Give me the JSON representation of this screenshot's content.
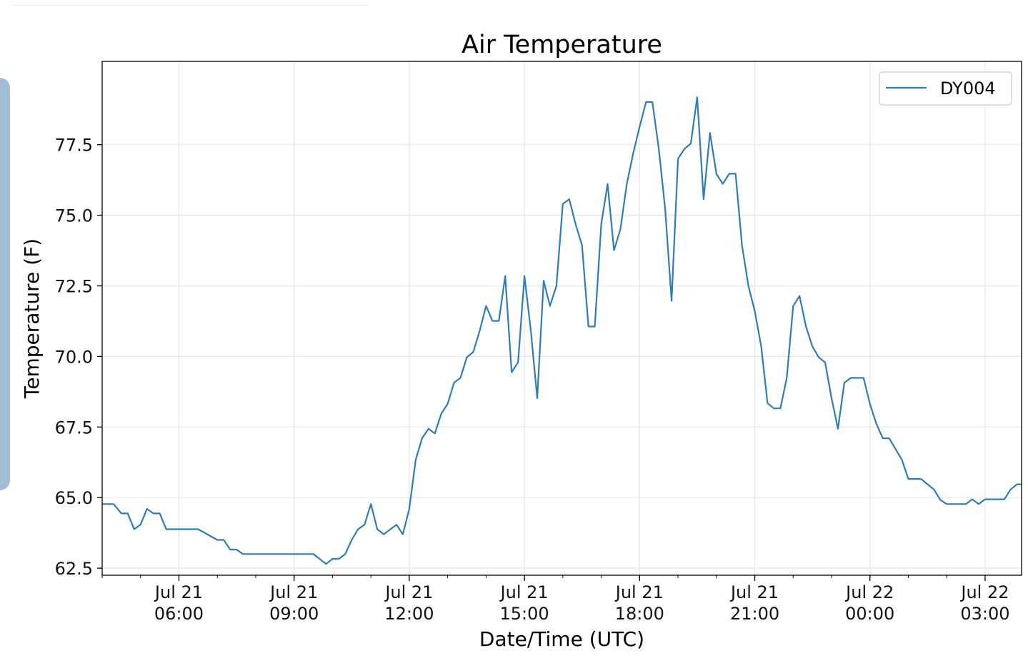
{
  "chart_data": {
    "type": "line",
    "title": "Air Temperature",
    "xlabel": "Date/Time (UTC)",
    "ylabel": "Temperature (F)",
    "ylim": [
      62.25,
      80.45
    ],
    "xlim": [
      "2023-07-21 04:00",
      "2023-07-22 03:57"
    ],
    "y_ticks": [
      "62.5",
      "65.0",
      "67.5",
      "70.0",
      "72.5",
      "75.0",
      "77.5"
    ],
    "x_ticks": [
      {
        "line1": "Jul 21",
        "line2": "06:00",
        "t": "2023-07-21 06:00"
      },
      {
        "line1": "Jul 21",
        "line2": "09:00",
        "t": "2023-07-21 09:00"
      },
      {
        "line1": "Jul 21",
        "line2": "12:00",
        "t": "2023-07-21 12:00"
      },
      {
        "line1": "Jul 21",
        "line2": "15:00",
        "t": "2023-07-21 15:00"
      },
      {
        "line1": "Jul 21",
        "line2": "18:00",
        "t": "2023-07-21 18:00"
      },
      {
        "line1": "Jul 21",
        "line2": "21:00",
        "t": "2023-07-21 21:00"
      },
      {
        "line1": "Jul 22",
        "line2": "00:00",
        "t": "2023-07-22 00:00"
      },
      {
        "line1": "Jul 22",
        "line2": "03:00",
        "t": "2023-07-22 03:00"
      }
    ],
    "grid": true,
    "legend_position": "top-right",
    "series": [
      {
        "name": "DY004",
        "color": "#2f7db4",
        "points": [
          [
            "2023-07-21 04:00",
            64.77
          ],
          [
            "2023-07-21 04:18",
            64.77
          ],
          [
            "2023-07-21 04:30",
            64.44
          ],
          [
            "2023-07-21 04:40",
            64.44
          ],
          [
            "2023-07-21 04:50",
            63.88
          ],
          [
            "2023-07-21 05:00",
            64.04
          ],
          [
            "2023-07-21 05:10",
            64.6
          ],
          [
            "2023-07-21 05:20",
            64.44
          ],
          [
            "2023-07-21 05:30",
            64.44
          ],
          [
            "2023-07-21 05:40",
            63.88
          ],
          [
            "2023-07-21 06:30",
            63.88
          ],
          [
            "2023-07-21 07:00",
            63.5
          ],
          [
            "2023-07-21 07:10",
            63.5
          ],
          [
            "2023-07-21 07:20",
            63.16
          ],
          [
            "2023-07-21 07:30",
            63.16
          ],
          [
            "2023-07-21 07:40",
            63.0
          ],
          [
            "2023-07-21 09:30",
            63.0
          ],
          [
            "2023-07-21 09:50",
            62.65
          ],
          [
            "2023-07-21 10:00",
            62.83
          ],
          [
            "2023-07-21 10:10",
            62.83
          ],
          [
            "2023-07-21 10:20",
            63.0
          ],
          [
            "2023-07-21 10:30",
            63.5
          ],
          [
            "2023-07-21 10:40",
            63.88
          ],
          [
            "2023-07-21 10:50",
            64.04
          ],
          [
            "2023-07-21 11:00",
            64.77
          ],
          [
            "2023-07-21 11:10",
            63.88
          ],
          [
            "2023-07-21 11:20",
            63.7
          ],
          [
            "2023-07-21 11:40",
            64.04
          ],
          [
            "2023-07-21 11:50",
            63.7
          ],
          [
            "2023-07-21 12:00",
            64.6
          ],
          [
            "2023-07-21 12:10",
            66.34
          ],
          [
            "2023-07-21 12:20",
            67.1
          ],
          [
            "2023-07-21 12:30",
            67.44
          ],
          [
            "2023-07-21 12:40",
            67.27
          ],
          [
            "2023-07-21 12:50",
            67.97
          ],
          [
            "2023-07-21 13:00",
            68.32
          ],
          [
            "2023-07-21 13:10",
            69.07
          ],
          [
            "2023-07-21 13:20",
            69.24
          ],
          [
            "2023-07-21 13:30",
            69.97
          ],
          [
            "2023-07-21 13:40",
            70.16
          ],
          [
            "2023-07-21 13:50",
            70.9
          ],
          [
            "2023-07-21 14:00",
            71.79
          ],
          [
            "2023-07-21 14:10",
            71.26
          ],
          [
            "2023-07-21 14:20",
            71.26
          ],
          [
            "2023-07-21 14:30",
            72.85
          ],
          [
            "2023-07-21 14:40",
            69.44
          ],
          [
            "2023-07-21 14:50",
            69.79
          ],
          [
            "2023-07-21 15:00",
            72.85
          ],
          [
            "2023-07-21 15:10",
            70.9
          ],
          [
            "2023-07-21 15:20",
            68.52
          ],
          [
            "2023-07-21 15:30",
            72.68
          ],
          [
            "2023-07-21 15:40",
            71.79
          ],
          [
            "2023-07-21 15:50",
            72.5
          ],
          [
            "2023-07-21 16:00",
            75.4
          ],
          [
            "2023-07-21 16:10",
            75.57
          ],
          [
            "2023-07-21 16:20",
            74.68
          ],
          [
            "2023-07-21 16:30",
            73.94
          ],
          [
            "2023-07-21 16:40",
            71.06
          ],
          [
            "2023-07-21 16:50",
            71.06
          ],
          [
            "2023-07-21 17:00",
            74.68
          ],
          [
            "2023-07-21 17:10",
            76.11
          ],
          [
            "2023-07-21 17:20",
            73.76
          ],
          [
            "2023-07-21 17:30",
            74.5
          ],
          [
            "2023-07-21 17:40",
            76.11
          ],
          [
            "2023-07-21 17:50",
            77.2
          ],
          [
            "2023-07-21 18:00",
            78.13
          ],
          [
            "2023-07-21 18:10",
            79.01
          ],
          [
            "2023-07-21 18:20",
            79.01
          ],
          [
            "2023-07-21 18:30",
            77.35
          ],
          [
            "2023-07-21 18:40",
            75.22
          ],
          [
            "2023-07-21 18:50",
            71.97
          ],
          [
            "2023-07-21 19:00",
            77.0
          ],
          [
            "2023-07-21 19:10",
            77.35
          ],
          [
            "2023-07-21 19:20",
            77.54
          ],
          [
            "2023-07-21 19:30",
            79.18
          ],
          [
            "2023-07-21 19:40",
            75.57
          ],
          [
            "2023-07-21 19:50",
            77.92
          ],
          [
            "2023-07-21 20:00",
            76.47
          ],
          [
            "2023-07-21 20:10",
            76.11
          ],
          [
            "2023-07-21 20:20",
            76.47
          ],
          [
            "2023-07-21 20:30",
            76.47
          ],
          [
            "2023-07-21 20:40",
            73.94
          ],
          [
            "2023-07-21 20:50",
            72.5
          ],
          [
            "2023-07-21 21:00",
            71.61
          ],
          [
            "2023-07-21 21:10",
            70.36
          ],
          [
            "2023-07-21 21:20",
            68.34
          ],
          [
            "2023-07-21 21:30",
            68.16
          ],
          [
            "2023-07-21 21:40",
            68.16
          ],
          [
            "2023-07-21 21:50",
            69.24
          ],
          [
            "2023-07-21 22:00",
            71.79
          ],
          [
            "2023-07-21 22:10",
            72.14
          ],
          [
            "2023-07-21 22:20",
            71.06
          ],
          [
            "2023-07-21 22:30",
            70.36
          ],
          [
            "2023-07-21 22:40",
            69.97
          ],
          [
            "2023-07-21 22:50",
            69.79
          ],
          [
            "2023-07-21 23:00",
            68.52
          ],
          [
            "2023-07-21 23:10",
            67.44
          ],
          [
            "2023-07-21 23:20",
            69.07
          ],
          [
            "2023-07-21 23:30",
            69.24
          ],
          [
            "2023-07-21 23:50",
            69.24
          ],
          [
            "2023-07-22 00:00",
            68.32
          ],
          [
            "2023-07-22 00:10",
            67.62
          ],
          [
            "2023-07-22 00:20",
            67.1
          ],
          [
            "2023-07-22 00:30",
            67.1
          ],
          [
            "2023-07-22 00:40",
            66.72
          ],
          [
            "2023-07-22 00:50",
            66.34
          ],
          [
            "2023-07-22 01:00",
            65.66
          ],
          [
            "2023-07-22 01:20",
            65.66
          ],
          [
            "2023-07-22 01:30",
            65.47
          ],
          [
            "2023-07-22 01:40",
            65.29
          ],
          [
            "2023-07-22 01:50",
            64.92
          ],
          [
            "2023-07-22 02:00",
            64.77
          ],
          [
            "2023-07-22 02:30",
            64.77
          ],
          [
            "2023-07-22 02:40",
            64.94
          ],
          [
            "2023-07-22 02:50",
            64.77
          ],
          [
            "2023-07-22 03:00",
            64.94
          ],
          [
            "2023-07-22 03:30",
            64.94
          ],
          [
            "2023-07-22 03:40",
            65.29
          ],
          [
            "2023-07-22 03:50",
            65.47
          ],
          [
            "2023-07-22 03:57",
            65.47
          ]
        ]
      }
    ]
  }
}
